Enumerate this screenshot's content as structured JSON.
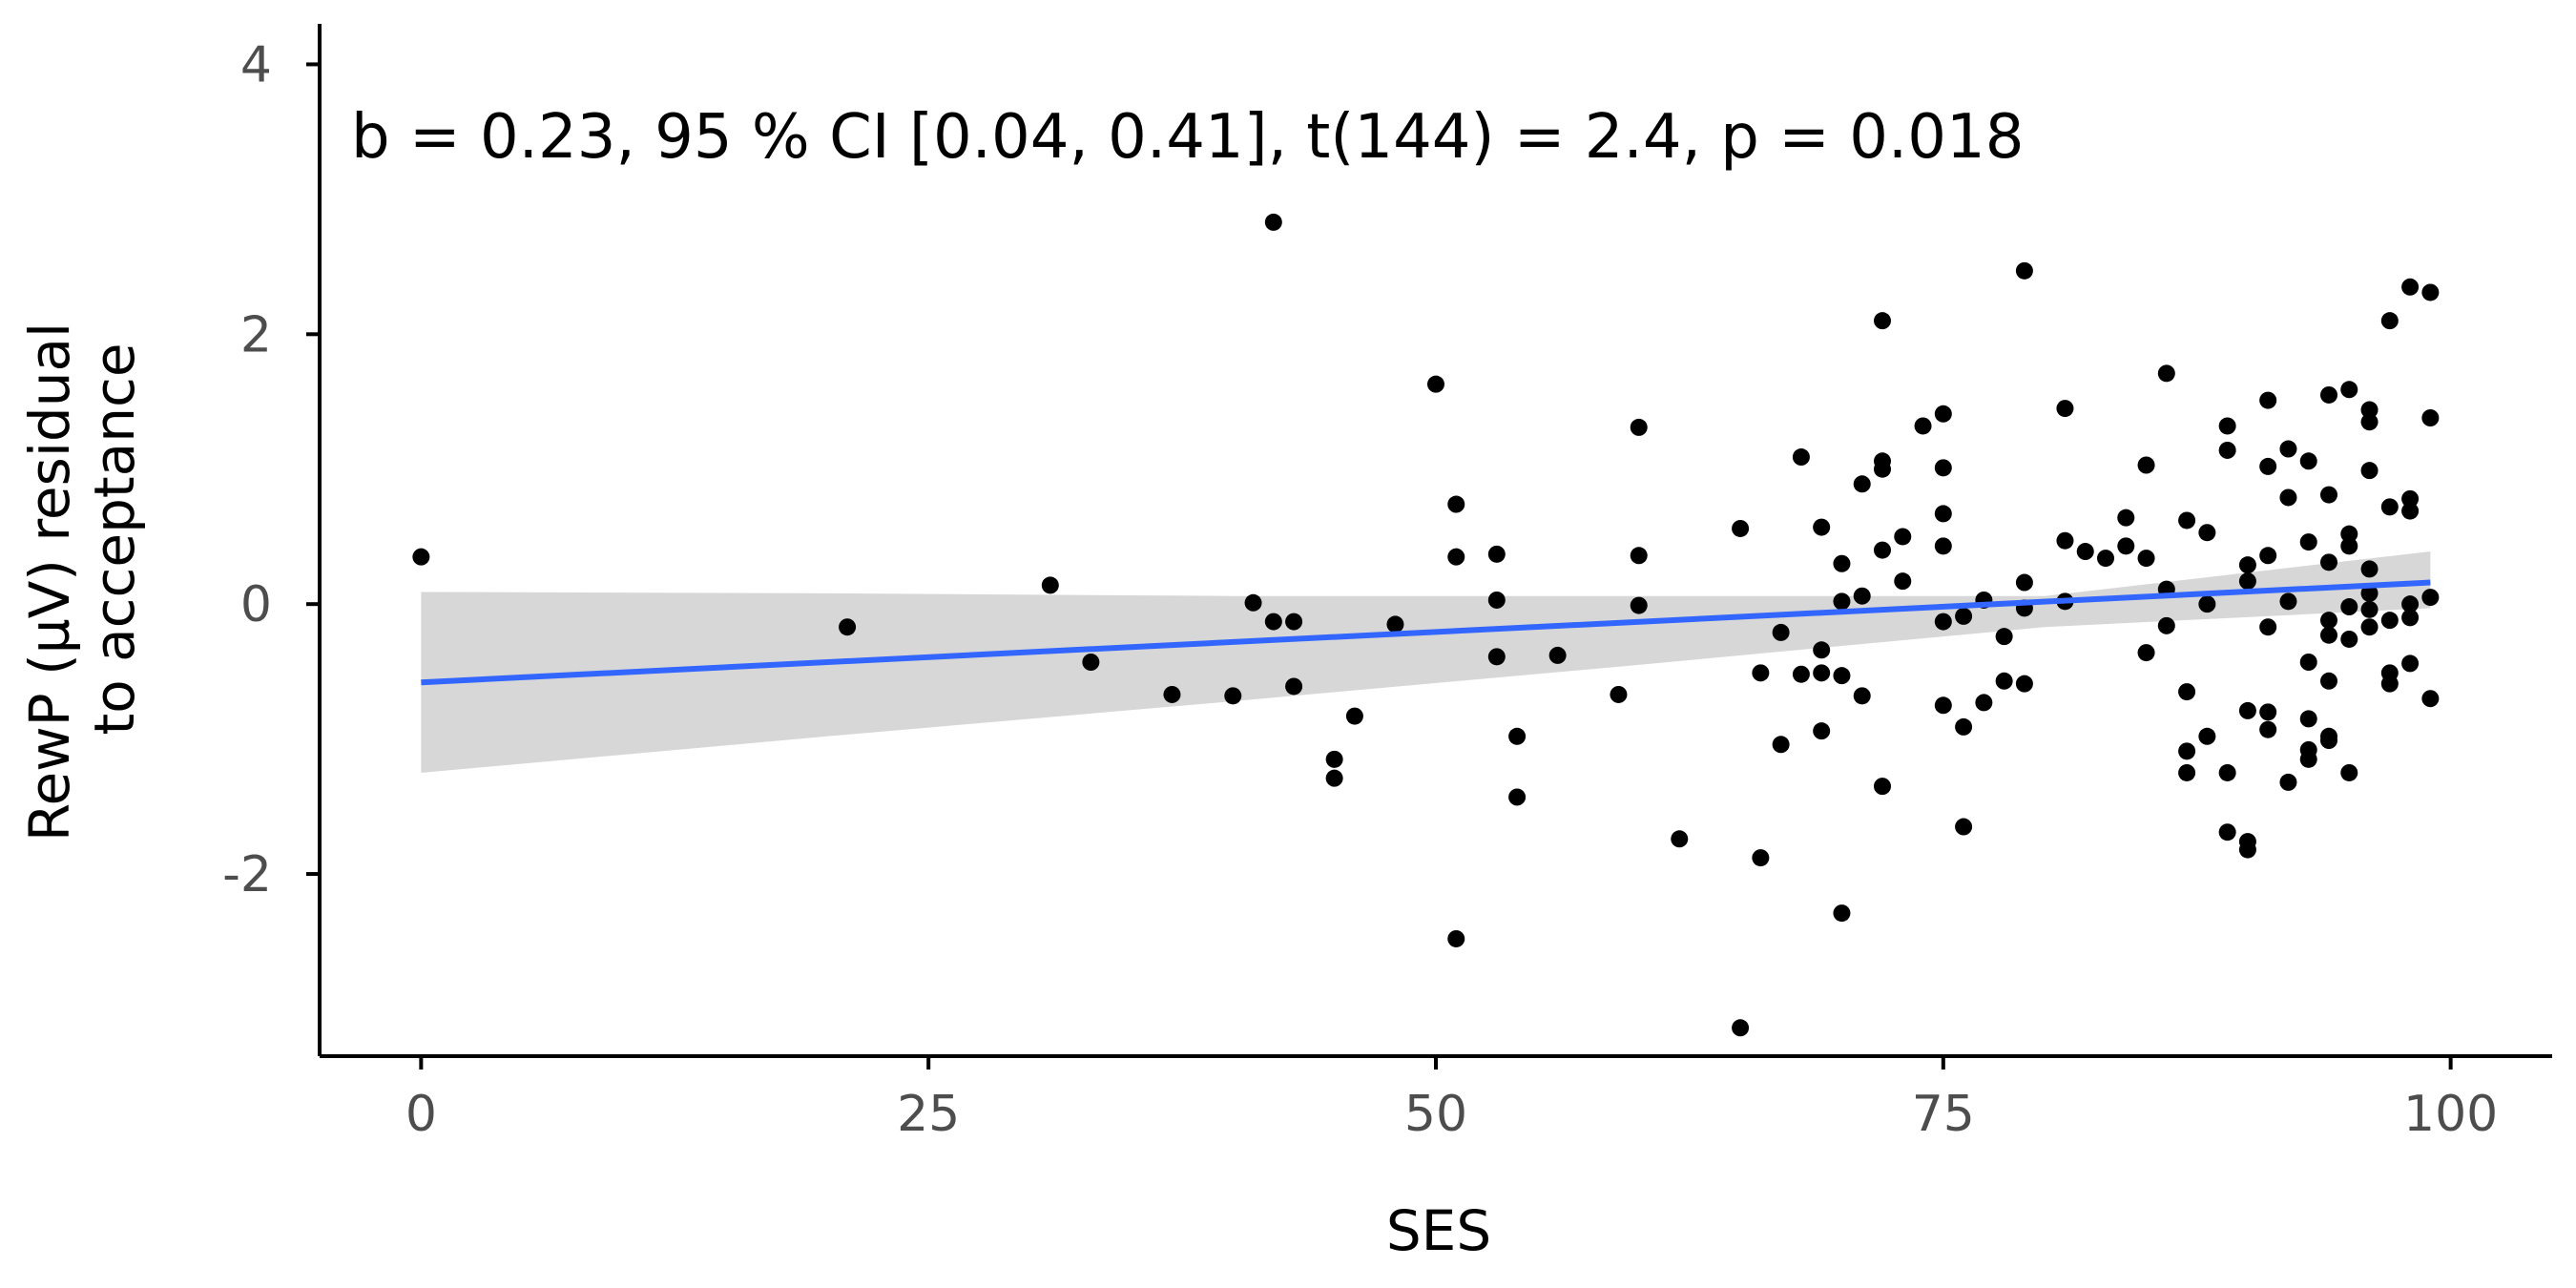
{
  "chart_data": {
    "type": "scatter",
    "title": "",
    "annotation": "b = 0.23, 95 %  CI [0.04, 0.41], t(144) = 2.4, p = 0.018",
    "xlabel": "SES",
    "ylabel_lines": [
      "RewP (µV) residual",
      "to acceptance"
    ],
    "xlim": [
      -5,
      105
    ],
    "ylim": [
      -3.35,
      4.3
    ],
    "x_ticks": [
      0,
      25,
      50,
      75,
      100
    ],
    "x_tick_labels": [
      "0",
      "25",
      "50",
      "75",
      "100"
    ],
    "y_ticks": [
      -2,
      0,
      2,
      4
    ],
    "y_tick_labels": [
      "-2",
      "0",
      "2",
      "4"
    ],
    "grid": false,
    "legend": "none",
    "colors": {
      "points": "#000000",
      "fit_line": "#3366FF",
      "ci_band": "#d3d3d3",
      "axis": "#000000",
      "tick_text": "#4d4d4d"
    },
    "fit": {
      "x": [
        0,
        99
      ],
      "y": [
        -0.58,
        0.16
      ]
    },
    "ci_band": {
      "x": [
        0,
        20,
        40,
        60,
        80,
        99
      ],
      "lower": [
        -1.25,
        -0.98,
        -0.72,
        -0.45,
        -0.17,
        -0.03
      ],
      "upper": [
        0.09,
        0.08,
        0.06,
        0.06,
        0.06,
        0.39
      ]
    },
    "points": [
      {
        "x": 0,
        "y": 0.35
      },
      {
        "x": 21,
        "y": -0.17
      },
      {
        "x": 31,
        "y": 0.14
      },
      {
        "x": 33,
        "y": -0.43
      },
      {
        "x": 37,
        "y": -0.67
      },
      {
        "x": 40,
        "y": -0.68
      },
      {
        "x": 41,
        "y": 0.01
      },
      {
        "x": 42,
        "y": 2.83
      },
      {
        "x": 42,
        "y": -0.13
      },
      {
        "x": 43,
        "y": -0.13
      },
      {
        "x": 43,
        "y": -0.61
      },
      {
        "x": 45,
        "y": -1.15
      },
      {
        "x": 45,
        "y": -1.29
      },
      {
        "x": 46,
        "y": -0.83
      },
      {
        "x": 48,
        "y": -0.15
      },
      {
        "x": 50,
        "y": 1.63
      },
      {
        "x": 51,
        "y": 0.74
      },
      {
        "x": 51,
        "y": 0.35
      },
      {
        "x": 51,
        "y": -2.48
      },
      {
        "x": 53,
        "y": 0.37
      },
      {
        "x": 53,
        "y": 0.03
      },
      {
        "x": 53,
        "y": -0.39
      },
      {
        "x": 54,
        "y": -0.98
      },
      {
        "x": 54,
        "y": -1.43
      },
      {
        "x": 56,
        "y": -0.38
      },
      {
        "x": 59,
        "y": -0.67
      },
      {
        "x": 60,
        "y": 1.31
      },
      {
        "x": 60,
        "y": 0.36
      },
      {
        "x": 60,
        "y": -0.01
      },
      {
        "x": 62,
        "y": -1.74
      },
      {
        "x": 65,
        "y": 0.56
      },
      {
        "x": 65,
        "y": -3.14
      },
      {
        "x": 66,
        "y": -0.51
      },
      {
        "x": 66,
        "y": -1.88
      },
      {
        "x": 67,
        "y": -0.21
      },
      {
        "x": 67,
        "y": -1.04
      },
      {
        "x": 68,
        "y": 1.09
      },
      {
        "x": 68,
        "y": -0.52
      },
      {
        "x": 69,
        "y": 0.57
      },
      {
        "x": 69,
        "y": -0.34
      },
      {
        "x": 69,
        "y": -0.51
      },
      {
        "x": 69,
        "y": -0.94
      },
      {
        "x": 70,
        "y": 0.3
      },
      {
        "x": 70,
        "y": 0.02
      },
      {
        "x": 70,
        "y": -0.53
      },
      {
        "x": 70,
        "y": -2.29
      },
      {
        "x": 71,
        "y": 0.89
      },
      {
        "x": 71,
        "y": 0.06
      },
      {
        "x": 71,
        "y": -0.68
      },
      {
        "x": 72,
        "y": 2.1
      },
      {
        "x": 72,
        "y": 1.06
      },
      {
        "x": 72,
        "y": 1.0
      },
      {
        "x": 72,
        "y": 0.4
      },
      {
        "x": 72,
        "y": -1.35
      },
      {
        "x": 73,
        "y": 0.5
      },
      {
        "x": 73,
        "y": 0.17
      },
      {
        "x": 74,
        "y": 1.32
      },
      {
        "x": 75,
        "y": 1.41
      },
      {
        "x": 75,
        "y": 1.01
      },
      {
        "x": 75,
        "y": 0.67
      },
      {
        "x": 75,
        "y": 0.43
      },
      {
        "x": 75,
        "y": -0.13
      },
      {
        "x": 75,
        "y": -0.75
      },
      {
        "x": 76,
        "y": -0.09
      },
      {
        "x": 76,
        "y": -0.91
      },
      {
        "x": 76,
        "y": -1.65
      },
      {
        "x": 77,
        "y": 0.03
      },
      {
        "x": 77,
        "y": -0.73
      },
      {
        "x": 78,
        "y": -0.24
      },
      {
        "x": 78,
        "y": -0.57
      },
      {
        "x": 79,
        "y": 2.47
      },
      {
        "x": 79,
        "y": 0.16
      },
      {
        "x": 79,
        "y": -0.03
      },
      {
        "x": 79,
        "y": -0.59
      },
      {
        "x": 81,
        "y": 1.45
      },
      {
        "x": 81,
        "y": 0.47
      },
      {
        "x": 81,
        "y": 0.02
      },
      {
        "x": 82,
        "y": 0.39
      },
      {
        "x": 83,
        "y": 0.34
      },
      {
        "x": 84,
        "y": 0.64
      },
      {
        "x": 84,
        "y": 0.43
      },
      {
        "x": 85,
        "y": 1.03
      },
      {
        "x": 85,
        "y": 0.34
      },
      {
        "x": 85,
        "y": -0.36
      },
      {
        "x": 86,
        "y": 1.71
      },
      {
        "x": 86,
        "y": 0.11
      },
      {
        "x": 86,
        "y": -0.16
      },
      {
        "x": 87,
        "y": 0.62
      },
      {
        "x": 87,
        "y": -0.65
      },
      {
        "x": 87,
        "y": -1.09
      },
      {
        "x": 87,
        "y": -1.25
      },
      {
        "x": 88,
        "y": 0.53
      },
      {
        "x": 88,
        "y": 0.0
      },
      {
        "x": 88,
        "y": -0.98
      },
      {
        "x": 89,
        "y": 1.32
      },
      {
        "x": 89,
        "y": 1.14
      },
      {
        "x": 89,
        "y": -1.25
      },
      {
        "x": 89,
        "y": -1.69
      },
      {
        "x": 90,
        "y": 0.29
      },
      {
        "x": 90,
        "y": 0.17
      },
      {
        "x": 90,
        "y": -0.79
      },
      {
        "x": 90,
        "y": -1.76
      },
      {
        "x": 90,
        "y": -1.82
      },
      {
        "x": 91,
        "y": 1.51
      },
      {
        "x": 91,
        "y": 1.02
      },
      {
        "x": 91,
        "y": 0.36
      },
      {
        "x": 91,
        "y": -0.17
      },
      {
        "x": 91,
        "y": -0.8
      },
      {
        "x": 91,
        "y": -0.93
      },
      {
        "x": 92,
        "y": 1.15
      },
      {
        "x": 92,
        "y": 0.79
      },
      {
        "x": 92,
        "y": 0.02
      },
      {
        "x": 92,
        "y": -1.32
      },
      {
        "x": 93,
        "y": 1.06
      },
      {
        "x": 93,
        "y": 0.46
      },
      {
        "x": 93,
        "y": -0.43
      },
      {
        "x": 93,
        "y": -0.85
      },
      {
        "x": 93,
        "y": -1.08
      },
      {
        "x": 93,
        "y": -1.15
      },
      {
        "x": 94,
        "y": 1.55
      },
      {
        "x": 94,
        "y": 0.81
      },
      {
        "x": 94,
        "y": 0.31
      },
      {
        "x": 94,
        "y": -0.12
      },
      {
        "x": 94,
        "y": -0.23
      },
      {
        "x": 94,
        "y": -0.57
      },
      {
        "x": 94,
        "y": -0.98
      },
      {
        "x": 94,
        "y": -1.01
      },
      {
        "x": 95,
        "y": 1.59
      },
      {
        "x": 95,
        "y": 0.52
      },
      {
        "x": 95,
        "y": 0.43
      },
      {
        "x": 95,
        "y": -0.02
      },
      {
        "x": 95,
        "y": -0.26
      },
      {
        "x": 95,
        "y": -1.25
      },
      {
        "x": 96,
        "y": 1.44
      },
      {
        "x": 96,
        "y": 1.35
      },
      {
        "x": 96,
        "y": 0.99
      },
      {
        "x": 96,
        "y": 0.26
      },
      {
        "x": 96,
        "y": 0.08
      },
      {
        "x": 96,
        "y": -0.04
      },
      {
        "x": 96,
        "y": -0.17
      },
      {
        "x": 97,
        "y": 2.1
      },
      {
        "x": 97,
        "y": 0.72
      },
      {
        "x": 97,
        "y": -0.12
      },
      {
        "x": 97,
        "y": -0.51
      },
      {
        "x": 97,
        "y": -0.59
      },
      {
        "x": 98,
        "y": 2.35
      },
      {
        "x": 98,
        "y": 0.78
      },
      {
        "x": 98,
        "y": 0.69
      },
      {
        "x": 98,
        "y": 0.0
      },
      {
        "x": 98,
        "y": -0.1
      },
      {
        "x": 98,
        "y": -0.44
      },
      {
        "x": 99,
        "y": 2.31
      },
      {
        "x": 99,
        "y": 1.38
      },
      {
        "x": 99,
        "y": 0.05
      },
      {
        "x": 99,
        "y": -0.7
      }
    ]
  }
}
